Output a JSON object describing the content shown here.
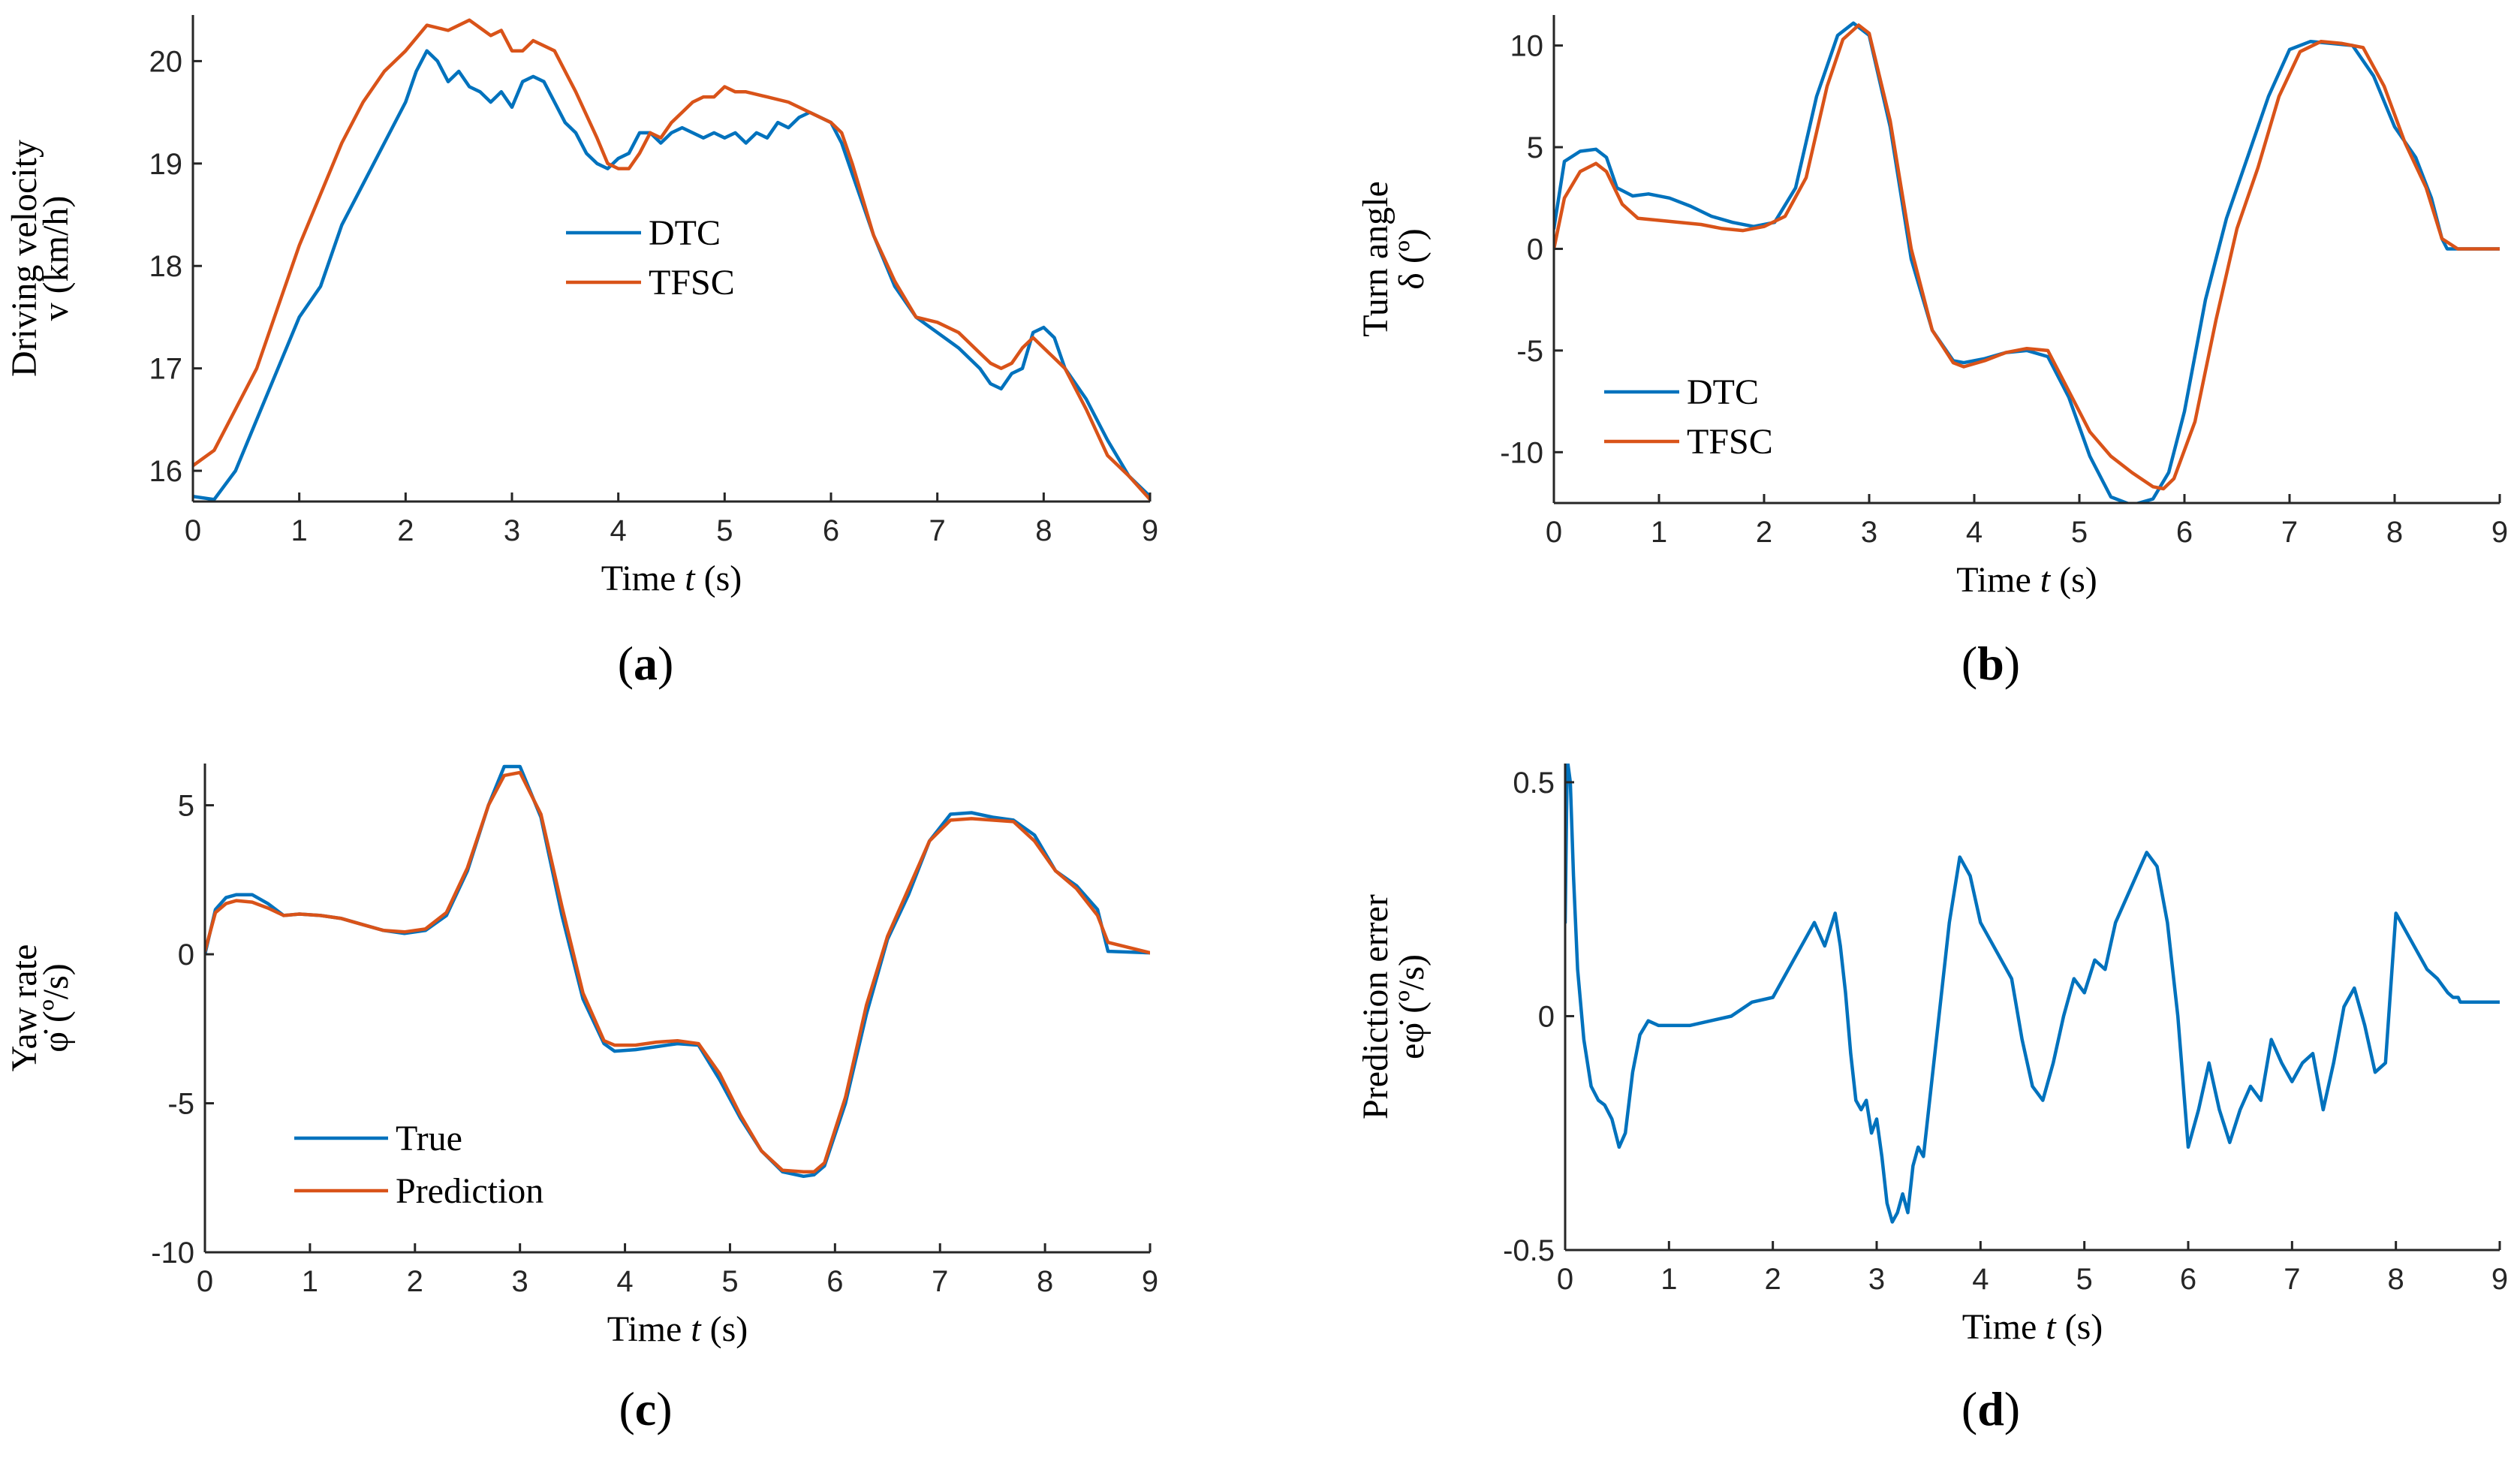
{
  "colors": {
    "blue": "#0072BD",
    "orange": "#D95319",
    "axis": "#262626"
  },
  "chart_data": [
    {
      "id": "a",
      "type": "line",
      "caption": "a",
      "xlabel_prefix": "Time ",
      "xlabel_var": "t",
      "xlabel_suffix": " (s)",
      "ylabel_lines": [
        "Driving velocity",
        "v (km/h)"
      ],
      "xlim": [
        0,
        9
      ],
      "ylim": [
        15.7,
        20.45
      ],
      "xticks": [
        0,
        1,
        2,
        3,
        4,
        5,
        6,
        7,
        8,
        9
      ],
      "xtick_labels": [
        "0",
        "1",
        "2",
        "3",
        "4",
        "5",
        "6",
        "7",
        "8",
        "9"
      ],
      "yticks": [
        16,
        17,
        18,
        19,
        20
      ],
      "ytick_labels": [
        "16",
        "17",
        "18",
        "19",
        "20"
      ],
      "legend_position": "center",
      "series": [
        {
          "name": "DTC",
          "color": "#0072BD",
          "x": [
            0,
            0.2,
            0.4,
            0.6,
            0.8,
            1.0,
            1.2,
            1.4,
            1.6,
            1.8,
            2.0,
            2.1,
            2.2,
            2.3,
            2.4,
            2.5,
            2.6,
            2.7,
            2.8,
            2.9,
            3.0,
            3.1,
            3.2,
            3.3,
            3.4,
            3.5,
            3.6,
            3.7,
            3.8,
            3.9,
            4.0,
            4.1,
            4.2,
            4.3,
            4.4,
            4.5,
            4.6,
            4.7,
            4.8,
            4.9,
            5.0,
            5.1,
            5.2,
            5.3,
            5.4,
            5.5,
            5.6,
            5.7,
            5.8,
            5.9,
            6.0,
            6.1,
            6.2,
            6.4,
            6.6,
            6.8,
            7.0,
            7.2,
            7.4,
            7.5,
            7.6,
            7.7,
            7.8,
            7.9,
            8.0,
            8.1,
            8.2,
            8.4,
            8.6,
            8.8,
            9.0
          ],
          "y": [
            15.75,
            15.72,
            16.0,
            16.5,
            17.0,
            17.5,
            17.8,
            18.4,
            18.8,
            19.2,
            19.6,
            19.9,
            20.1,
            20.0,
            19.8,
            19.9,
            19.75,
            19.7,
            19.6,
            19.7,
            19.55,
            19.8,
            19.85,
            19.8,
            19.6,
            19.4,
            19.3,
            19.1,
            19.0,
            18.95,
            19.05,
            19.1,
            19.3,
            19.3,
            19.2,
            19.3,
            19.35,
            19.3,
            19.25,
            19.3,
            19.25,
            19.3,
            19.2,
            19.3,
            19.25,
            19.4,
            19.35,
            19.45,
            19.5,
            19.45,
            19.4,
            19.2,
            18.9,
            18.3,
            17.8,
            17.5,
            17.35,
            17.2,
            17.0,
            16.85,
            16.8,
            16.95,
            17.0,
            17.35,
            17.4,
            17.3,
            17.0,
            16.7,
            16.3,
            15.95,
            15.75
          ]
        },
        {
          "name": "TFSC",
          "color": "#D95319",
          "x": [
            0,
            0.2,
            0.4,
            0.6,
            0.8,
            1.0,
            1.2,
            1.4,
            1.6,
            1.8,
            2.0,
            2.2,
            2.4,
            2.6,
            2.8,
            2.9,
            3.0,
            3.1,
            3.2,
            3.4,
            3.6,
            3.8,
            3.9,
            4.0,
            4.1,
            4.2,
            4.3,
            4.4,
            4.5,
            4.6,
            4.7,
            4.8,
            4.9,
            5.0,
            5.1,
            5.2,
            5.4,
            5.6,
            5.8,
            6.0,
            6.1,
            6.2,
            6.4,
            6.6,
            6.8,
            7.0,
            7.2,
            7.4,
            7.5,
            7.6,
            7.7,
            7.8,
            7.9,
            8.0,
            8.1,
            8.2,
            8.4,
            8.6,
            8.8,
            9.0
          ],
          "y": [
            16.05,
            16.2,
            16.6,
            17.0,
            17.6,
            18.2,
            18.7,
            19.2,
            19.6,
            19.9,
            20.1,
            20.35,
            20.3,
            20.4,
            20.25,
            20.3,
            20.1,
            20.1,
            20.2,
            20.1,
            19.7,
            19.25,
            19.0,
            18.95,
            18.95,
            19.1,
            19.3,
            19.25,
            19.4,
            19.5,
            19.6,
            19.65,
            19.65,
            19.75,
            19.7,
            19.7,
            19.65,
            19.6,
            19.5,
            19.4,
            19.3,
            19.0,
            18.3,
            17.85,
            17.5,
            17.45,
            17.35,
            17.15,
            17.05,
            17.0,
            17.05,
            17.2,
            17.3,
            17.2,
            17.1,
            17.0,
            16.6,
            16.15,
            15.95,
            15.72
          ]
        }
      ]
    },
    {
      "id": "b",
      "type": "line",
      "caption": "b",
      "xlabel_prefix": "Time ",
      "xlabel_var": "t",
      "xlabel_suffix": " (s)",
      "ylabel_lines": [
        "Turn angle",
        "δ (º)"
      ],
      "xlim": [
        0,
        9
      ],
      "ylim": [
        -12.5,
        11.5
      ],
      "xticks": [
        0,
        1,
        2,
        3,
        4,
        5,
        6,
        7,
        8,
        9
      ],
      "xtick_labels": [
        "0",
        "1",
        "2",
        "3",
        "4",
        "5",
        "6",
        "7",
        "8",
        "9"
      ],
      "yticks": [
        -10,
        -5,
        0,
        5,
        10
      ],
      "ytick_labels": [
        "-10",
        "-5",
        "0",
        "5",
        "10"
      ],
      "legend_position": "bottom-left",
      "series": [
        {
          "name": "DTC",
          "color": "#0072BD",
          "x": [
            0,
            0.1,
            0.25,
            0.4,
            0.5,
            0.6,
            0.75,
            0.9,
            1.1,
            1.3,
            1.5,
            1.7,
            1.9,
            2.1,
            2.3,
            2.5,
            2.7,
            2.85,
            3.0,
            3.2,
            3.4,
            3.6,
            3.8,
            3.9,
            4.1,
            4.3,
            4.5,
            4.7,
            4.9,
            5.1,
            5.3,
            5.5,
            5.7,
            5.85,
            6.0,
            6.2,
            6.4,
            6.6,
            6.8,
            7.0,
            7.2,
            7.4,
            7.6,
            7.8,
            8.0,
            8.2,
            8.35,
            8.45,
            8.5,
            8.6,
            9.0
          ],
          "y": [
            1.0,
            4.3,
            4.8,
            4.9,
            4.5,
            3.0,
            2.6,
            2.7,
            2.5,
            2.1,
            1.6,
            1.3,
            1.1,
            1.3,
            3.0,
            7.5,
            10.5,
            11.1,
            10.5,
            6.0,
            -0.5,
            -4.0,
            -5.5,
            -5.6,
            -5.4,
            -5.1,
            -5.0,
            -5.3,
            -7.3,
            -10.2,
            -12.2,
            -12.6,
            -12.3,
            -11.0,
            -8.0,
            -2.5,
            1.5,
            4.5,
            7.5,
            9.8,
            10.2,
            10.1,
            10.0,
            8.5,
            6.0,
            4.5,
            2.5,
            0.5,
            0,
            0,
            0
          ]
        },
        {
          "name": "TFSC",
          "color": "#D95319",
          "x": [
            0,
            0.1,
            0.25,
            0.4,
            0.5,
            0.65,
            0.8,
            1.0,
            1.2,
            1.4,
            1.6,
            1.8,
            2.0,
            2.2,
            2.4,
            2.6,
            2.75,
            2.9,
            3.0,
            3.2,
            3.4,
            3.6,
            3.8,
            3.9,
            4.1,
            4.3,
            4.5,
            4.7,
            4.9,
            5.1,
            5.3,
            5.5,
            5.7,
            5.8,
            5.9,
            6.1,
            6.3,
            6.5,
            6.7,
            6.9,
            7.1,
            7.3,
            7.5,
            7.7,
            7.9,
            8.1,
            8.3,
            8.45,
            8.6,
            9.0
          ],
          "y": [
            0,
            2.5,
            3.8,
            4.2,
            3.8,
            2.2,
            1.5,
            1.4,
            1.3,
            1.2,
            1.0,
            0.9,
            1.1,
            1.6,
            3.5,
            8.0,
            10.3,
            11.0,
            10.6,
            6.3,
            0.0,
            -4.0,
            -5.6,
            -5.8,
            -5.5,
            -5.1,
            -4.9,
            -5.0,
            -7.0,
            -9.0,
            -10.2,
            -11.0,
            -11.7,
            -11.8,
            -11.3,
            -8.5,
            -3.5,
            1.0,
            4.0,
            7.5,
            9.7,
            10.2,
            10.1,
            9.9,
            8.0,
            5.2,
            3.0,
            0.5,
            0,
            0
          ]
        }
      ]
    },
    {
      "id": "c",
      "type": "line",
      "caption": "c",
      "xlabel_prefix": "Time ",
      "xlabel_var": "t",
      "xlabel_suffix": " (s)",
      "ylabel_lines": [
        "Yaw rate",
        "φ̇ (º/s)"
      ],
      "xlim": [
        0,
        9
      ],
      "ylim": [
        -10,
        6.4
      ],
      "xticks": [
        0,
        1,
        2,
        3,
        4,
        5,
        6,
        7,
        8,
        9
      ],
      "xtick_labels": [
        "0",
        "1",
        "2",
        "3",
        "4",
        "5",
        "6",
        "7",
        "8",
        "9"
      ],
      "yticks": [
        -10,
        -5,
        0,
        5
      ],
      "ytick_labels": [
        "-10",
        "-5",
        "0",
        "5"
      ],
      "legend_position": "bottom-left",
      "series": [
        {
          "name": "True",
          "color": "#0072BD",
          "x": [
            0,
            0.1,
            0.2,
            0.3,
            0.45,
            0.6,
            0.75,
            0.9,
            1.1,
            1.3,
            1.5,
            1.7,
            1.9,
            2.1,
            2.3,
            2.5,
            2.7,
            2.85,
            3.0,
            3.2,
            3.4,
            3.6,
            3.8,
            3.9,
            4.1,
            4.3,
            4.5,
            4.7,
            4.9,
            5.1,
            5.3,
            5.5,
            5.7,
            5.8,
            5.9,
            6.1,
            6.3,
            6.5,
            6.7,
            6.9,
            7.1,
            7.3,
            7.5,
            7.7,
            7.9,
            8.1,
            8.3,
            8.5,
            8.6,
            9.0
          ],
          "y": [
            0,
            1.5,
            1.9,
            2.0,
            2.0,
            1.7,
            1.3,
            1.35,
            1.3,
            1.2,
            1.0,
            0.8,
            0.7,
            0.8,
            1.3,
            2.8,
            5.0,
            6.3,
            6.3,
            4.6,
            1.3,
            -1.5,
            -3.0,
            -3.25,
            -3.2,
            -3.1,
            -3.0,
            -3.05,
            -4.2,
            -5.5,
            -6.6,
            -7.3,
            -7.45,
            -7.4,
            -7.1,
            -5.0,
            -2.0,
            0.5,
            2.0,
            3.8,
            4.7,
            4.75,
            4.6,
            4.5,
            4.0,
            2.8,
            2.3,
            1.5,
            0.1,
            0.05
          ]
        },
        {
          "name": "Prediction",
          "color": "#D95319",
          "x": [
            0,
            0.1,
            0.2,
            0.3,
            0.45,
            0.6,
            0.75,
            0.9,
            1.1,
            1.3,
            1.5,
            1.7,
            1.9,
            2.1,
            2.3,
            2.5,
            2.7,
            2.85,
            3.0,
            3.2,
            3.4,
            3.6,
            3.8,
            3.9,
            4.1,
            4.3,
            4.5,
            4.7,
            4.9,
            5.1,
            5.3,
            5.5,
            5.7,
            5.8,
            5.9,
            6.1,
            6.3,
            6.5,
            6.7,
            6.9,
            7.1,
            7.3,
            7.5,
            7.7,
            7.9,
            8.1,
            8.3,
            8.5,
            8.6,
            9.0
          ],
          "y": [
            0.1,
            1.4,
            1.7,
            1.8,
            1.75,
            1.55,
            1.3,
            1.35,
            1.3,
            1.2,
            1.0,
            0.8,
            0.75,
            0.85,
            1.4,
            2.9,
            5.0,
            6.0,
            6.1,
            4.7,
            1.6,
            -1.3,
            -2.9,
            -3.05,
            -3.05,
            -2.95,
            -2.9,
            -3.0,
            -4.0,
            -5.4,
            -6.6,
            -7.25,
            -7.3,
            -7.3,
            -7.0,
            -4.8,
            -1.7,
            0.6,
            2.2,
            3.8,
            4.5,
            4.55,
            4.5,
            4.45,
            3.8,
            2.8,
            2.2,
            1.3,
            0.4,
            0.05
          ]
        }
      ]
    },
    {
      "id": "d",
      "type": "line",
      "caption": "d",
      "xlabel_prefix": "Time ",
      "xlabel_var": "t",
      "xlabel_suffix": " (s)",
      "ylabel_lines": [
        "Prediction errer",
        "eφ̇ (º/s)"
      ],
      "xlim": [
        0,
        9
      ],
      "ylim": [
        -0.5,
        0.54
      ],
      "xticks": [
        0,
        1,
        2,
        3,
        4,
        5,
        6,
        7,
        8,
        9
      ],
      "xtick_labels": [
        "0",
        "1",
        "2",
        "3",
        "4",
        "5",
        "6",
        "7",
        "8",
        "9"
      ],
      "yticks": [
        -0.5,
        0,
        0.5
      ],
      "ytick_labels": [
        "-0.5",
        "0",
        "0.5"
      ],
      "legend_position": "none",
      "series": [
        {
          "name": "Prediction error",
          "color": "#0072BD",
          "x": [
            0,
            0.02,
            0.05,
            0.08,
            0.12,
            0.18,
            0.25,
            0.32,
            0.38,
            0.45,
            0.52,
            0.58,
            0.65,
            0.72,
            0.8,
            0.9,
            1.0,
            1.2,
            1.4,
            1.6,
            1.8,
            2.0,
            2.1,
            2.2,
            2.3,
            2.4,
            2.5,
            2.6,
            2.65,
            2.7,
            2.75,
            2.8,
            2.85,
            2.9,
            2.95,
            3.0,
            3.05,
            3.1,
            3.15,
            3.2,
            3.25,
            3.3,
            3.35,
            3.4,
            3.45,
            3.5,
            3.6,
            3.7,
            3.8,
            3.9,
            4.0,
            4.1,
            4.2,
            4.3,
            4.4,
            4.5,
            4.6,
            4.7,
            4.8,
            4.9,
            5.0,
            5.1,
            5.2,
            5.3,
            5.4,
            5.5,
            5.6,
            5.7,
            5.8,
            5.9,
            6.0,
            6.1,
            6.2,
            6.3,
            6.4,
            6.5,
            6.6,
            6.7,
            6.8,
            6.9,
            7.0,
            7.1,
            7.2,
            7.3,
            7.4,
            7.5,
            7.6,
            7.7,
            7.8,
            7.9,
            8.0,
            8.1,
            8.2,
            8.3,
            8.4,
            8.5,
            8.55,
            8.6,
            8.62,
            8.7,
            8.8,
            8.9,
            9.0
          ],
          "y": [
            0.2,
            0.55,
            0.5,
            0.3,
            0.1,
            -0.05,
            -0.15,
            -0.18,
            -0.19,
            -0.22,
            -0.28,
            -0.25,
            -0.12,
            -0.04,
            -0.01,
            -0.02,
            -0.02,
            -0.02,
            -0.01,
            0.0,
            0.03,
            0.04,
            0.08,
            0.12,
            0.16,
            0.2,
            0.15,
            0.22,
            0.15,
            0.05,
            -0.08,
            -0.18,
            -0.2,
            -0.18,
            -0.25,
            -0.22,
            -0.3,
            -0.4,
            -0.44,
            -0.42,
            -0.38,
            -0.42,
            -0.32,
            -0.28,
            -0.3,
            -0.2,
            0.0,
            0.2,
            0.34,
            0.3,
            0.2,
            0.16,
            0.12,
            0.08,
            -0.05,
            -0.15,
            -0.18,
            -0.1,
            0.0,
            0.08,
            0.05,
            0.12,
            0.1,
            0.2,
            0.25,
            0.3,
            0.35,
            0.32,
            0.2,
            0.0,
            -0.28,
            -0.2,
            -0.1,
            -0.2,
            -0.27,
            -0.2,
            -0.15,
            -0.18,
            -0.05,
            -0.1,
            -0.14,
            -0.1,
            -0.08,
            -0.2,
            -0.1,
            0.02,
            0.06,
            -0.02,
            -0.12,
            -0.1,
            0.22,
            0.18,
            0.14,
            0.1,
            0.08,
            0.05,
            0.04,
            0.04,
            0.03,
            0.03,
            0.03,
            0.03,
            0.03
          ]
        }
      ]
    }
  ]
}
